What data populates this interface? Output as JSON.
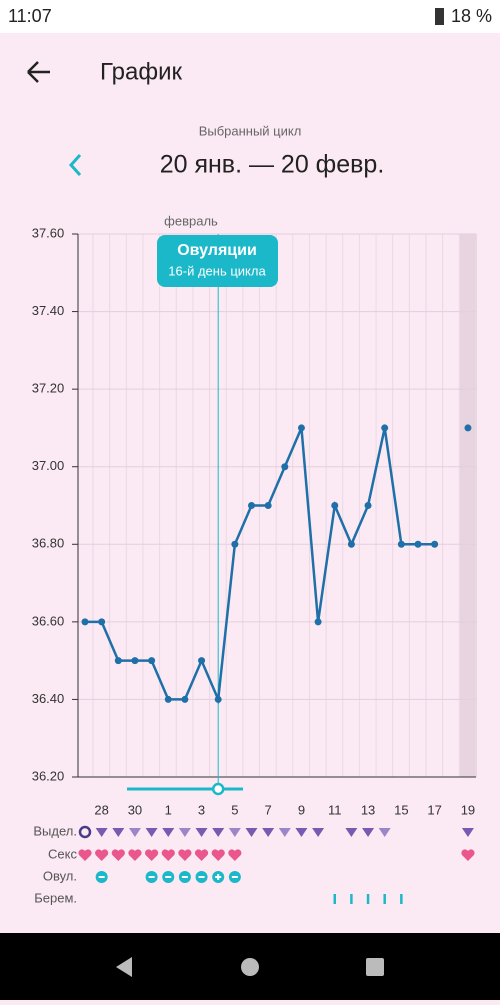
{
  "status": {
    "time": "11:07",
    "battery": "18 %"
  },
  "header": {
    "title": "График",
    "cycle_caption": "Выбранный цикл",
    "cycle_range": "20 янв. — 20 февр."
  },
  "chart_data": {
    "type": "line",
    "month_label": "февраль",
    "annotation": {
      "title": "Овуляции",
      "subtitle": "16-й день цикла"
    },
    "categories": [
      null,
      "28",
      null,
      "30",
      null,
      "1",
      null,
      "3",
      null,
      "5",
      null,
      "7",
      null,
      "9",
      null,
      "11",
      null,
      "13",
      null,
      "15",
      null,
      "17",
      null,
      "19"
    ],
    "series": [
      {
        "name": "temperature",
        "color": "#1f6fa8",
        "values": [
          36.6,
          36.6,
          36.5,
          36.5,
          36.5,
          36.4,
          36.4,
          36.5,
          36.4,
          36.8,
          36.9,
          36.9,
          37.0,
          37.1,
          36.6,
          36.9,
          36.8,
          36.9,
          37.1,
          36.8,
          36.8,
          36.8,
          null,
          37.1
        ]
      }
    ],
    "ylim": [
      36.2,
      37.6
    ],
    "yticks": [
      {
        "value": 36.2,
        "label": "36.20"
      },
      {
        "value": 36.4,
        "label": "36.40"
      },
      {
        "value": 36.6,
        "label": "36.60"
      },
      {
        "value": 36.8,
        "label": "36.80"
      },
      {
        "value": 37.0,
        "label": "37.00"
      },
      {
        "value": 37.2,
        "label": "37.20"
      },
      {
        "value": 37.4,
        "label": "37.40"
      },
      {
        "value": 37.6,
        "label": "37.60"
      }
    ],
    "grid": true
  },
  "rows": [
    "Выдел.",
    "Секс",
    "Овул.",
    "Берем."
  ]
}
